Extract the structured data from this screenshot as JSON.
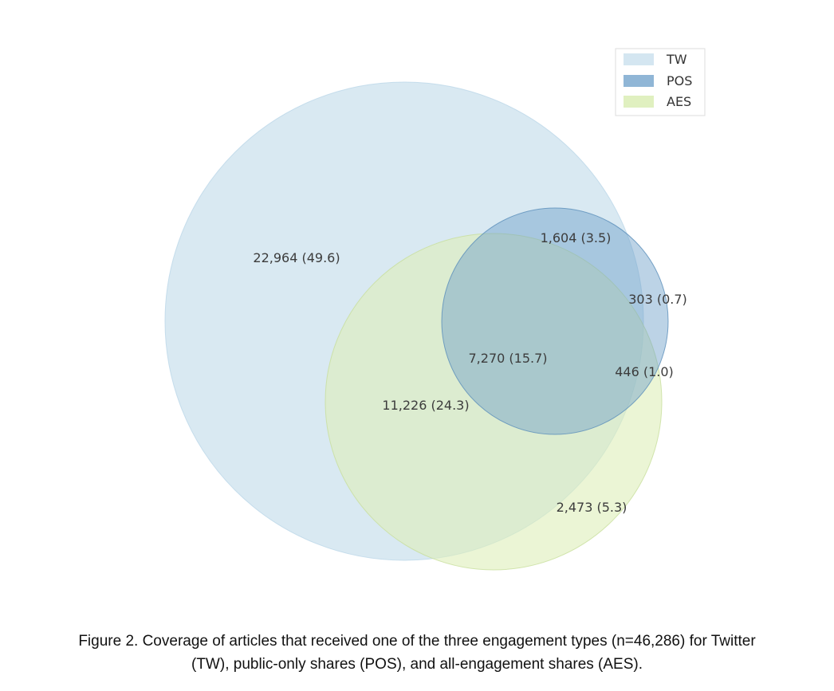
{
  "chart_data": {
    "type": "venn",
    "sets": [
      {
        "key": "TW",
        "name": "TW",
        "color": "#cfe3ef"
      },
      {
        "key": "POS",
        "name": "POS",
        "color": "#6b9ec8"
      },
      {
        "key": "AES",
        "name": "AES",
        "color": "#ddeeb9"
      }
    ],
    "regions": [
      {
        "sets": [
          "TW"
        ],
        "count": 22964,
        "label": "22,964 (49.6)"
      },
      {
        "sets": [
          "TW",
          "POS"
        ],
        "count": 1604,
        "label": "1,604 (3.5)"
      },
      {
        "sets": [
          "POS"
        ],
        "count": 303,
        "label": "303 (0.7)"
      },
      {
        "sets": [
          "TW",
          "POS",
          "AES"
        ],
        "count": 7270,
        "label": "7,270 (15.7)"
      },
      {
        "sets": [
          "POS",
          "AES"
        ],
        "count": 446,
        "label": "446 (1.0)"
      },
      {
        "sets": [
          "TW",
          "AES"
        ],
        "count": 11226,
        "label": "11,226 (24.3)"
      },
      {
        "sets": [
          "AES"
        ],
        "count": 2473,
        "label": "2,473 (5.3)"
      }
    ],
    "total": 46286,
    "legend_position": "top-right"
  },
  "caption": {
    "line1": "Figure 2. Coverage of articles that received one of the three engagement types (n=46,286) for Twitter",
    "line2": "(TW), public-only shares (POS), and all-engagement shares (AES)."
  }
}
